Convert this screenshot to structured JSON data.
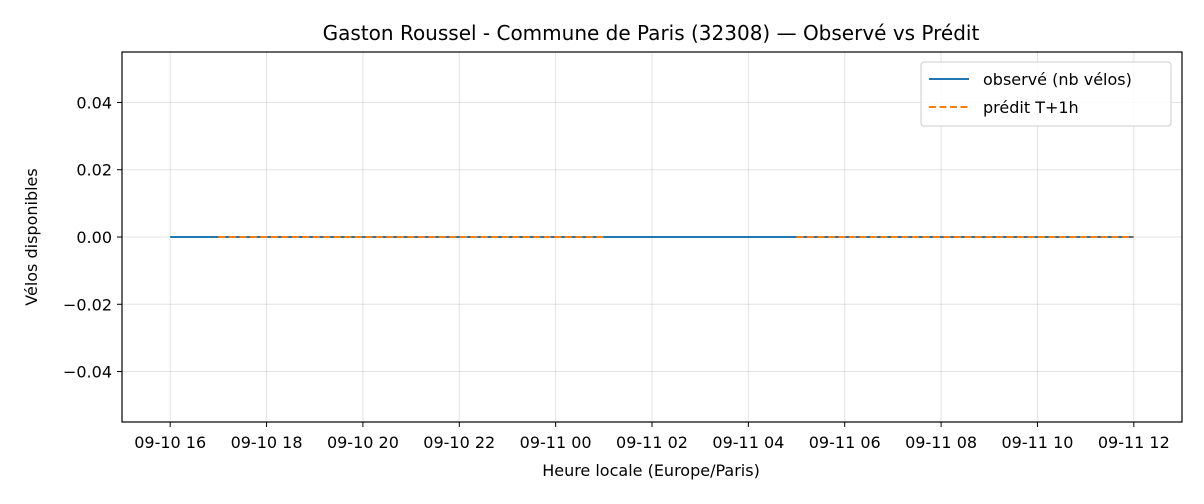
{
  "chart_data": {
    "type": "line",
    "title": "Gaston Roussel - Commune de Paris (32308) — Observé vs Prédit",
    "xlabel": "Heure locale (Europe/Paris)",
    "ylabel": "Vélos disponibles",
    "grid": true,
    "legend_position": "top-right",
    "x_ticks": [
      "09-10 16",
      "09-10 18",
      "09-10 20",
      "09-10 22",
      "09-11 00",
      "09-11 02",
      "09-11 04",
      "09-11 06",
      "09-11 08",
      "09-11 10",
      "09-11 12"
    ],
    "x_range": [
      "09-10 15:00",
      "09-11 13:00"
    ],
    "y_ticks": [
      "−0.04",
      "−0.02",
      "0.00",
      "0.02",
      "0.04"
    ],
    "ylim": [
      -0.055,
      0.055
    ],
    "series": [
      {
        "name": "observé (nb vélos)",
        "color": "#1f77b4",
        "style": "solid",
        "segments": [
          {
            "x": [
              "09-10 16:00",
              "09-11 12:00"
            ],
            "y": [
              0,
              0
            ]
          }
        ]
      },
      {
        "name": "prédit T+1h",
        "color": "#ff7f0e",
        "style": "dashed",
        "segments": [
          {
            "x": [
              "09-10 17:00",
              "09-11 01:00"
            ],
            "y": [
              0,
              0
            ]
          },
          {
            "x": [
              "09-11 05:00",
              "09-11 12:00"
            ],
            "y": [
              0,
              0
            ]
          }
        ]
      }
    ]
  }
}
